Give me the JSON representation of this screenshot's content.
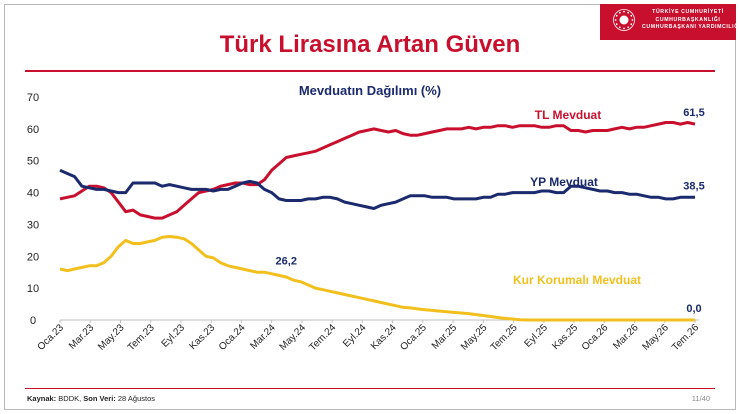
{
  "header": {
    "title": "Türk Lirasına Artan Güven",
    "banner_line1": "TÜRKİYE CUMHURİYETİ",
    "banner_line2": "CUMHURBAŞKANLIĞI",
    "banner_line3": "CUMHURBAŞKANI YARDIMCILIĞI",
    "brand_color": "#c8102e"
  },
  "footer": {
    "source_label": "Kaynak:",
    "source_text": " BDDK, ",
    "data_label": "Son Veri:",
    "data_text": " 28 Ağustos",
    "page": "11/40"
  },
  "chart_data": {
    "type": "line",
    "title": "Mevduatın Dağılımı (%)",
    "xlabel": "",
    "ylabel": "",
    "ylim": [
      0,
      70
    ],
    "yticks": [
      0,
      10,
      20,
      30,
      40,
      50,
      60,
      70
    ],
    "grid": false,
    "x_tick_labels": [
      "Oca.23",
      "Mar.23",
      "May.23",
      "Tem.23",
      "Eyl.23",
      "Kas.23",
      "Oca.24",
      "Mar.24",
      "May.24",
      "Tem.24",
      "Eyl.24",
      "Kas.24",
      "Oca.25",
      "Mar.25",
      "May.25",
      "Tem.25",
      "Eyl.25",
      "Kas.25",
      "Oca.26",
      "Mar.26",
      "May.26",
      "Tem.26"
    ],
    "series": [
      {
        "name": "TL Mevduat",
        "color": "#c8102e",
        "end_label": "61,5",
        "x": [
          0,
          0.5,
          1,
          1.5,
          2,
          2.5,
          3,
          3.5,
          4,
          4.5,
          5,
          5.5,
          6,
          6.5,
          7,
          7.5,
          8,
          8.5,
          9,
          9.5,
          10,
          10.5,
          11,
          11.5,
          12,
          12.5,
          13,
          13.5,
          14,
          14.5,
          15,
          15.5,
          16,
          16.5,
          17,
          17.5,
          18,
          18.5,
          19,
          19.5,
          20,
          20.5,
          21,
          21.5,
          22,
          22.5,
          23,
          23.5,
          24,
          24.5,
          25,
          25.5,
          26,
          26.5,
          27,
          27.5,
          28,
          28.5,
          29,
          29.5,
          30,
          30.5,
          31,
          31.5,
          32,
          32.5,
          33,
          33.5,
          34,
          34.5,
          35,
          35.5,
          36,
          36.5,
          37,
          37.5,
          38,
          38.5,
          39,
          39.5,
          40,
          40.5,
          41,
          41.5,
          42,
          42.5,
          43,
          43.5
        ],
        "values": [
          38,
          38.5,
          39,
          40.5,
          42,
          42,
          41.5,
          40,
          37,
          34,
          34.5,
          33,
          32.5,
          32,
          32,
          33,
          34,
          36,
          38,
          40,
          40.5,
          41,
          42,
          42.5,
          43,
          43,
          42.5,
          42.5,
          44,
          47,
          49,
          51,
          51.5,
          52,
          52.5,
          53,
          54,
          55,
          56,
          57,
          58,
          59,
          59.5,
          60,
          59.5,
          59,
          59.5,
          58.5,
          58,
          58,
          58.5,
          59,
          59.5,
          60,
          60,
          60,
          60.5,
          60,
          60.5,
          60.5,
          61,
          61,
          60.5,
          61,
          61,
          61,
          60.5,
          60.5,
          61,
          61,
          59.5,
          59.5,
          59,
          59.5,
          59.5,
          59.5,
          60,
          60.5,
          60,
          60.5,
          60.5,
          61,
          61.5,
          62,
          62,
          61.5,
          62,
          61.5
        ]
      },
      {
        "name": "YP Mevduat",
        "color": "#1a2a6c",
        "end_label": "38,5",
        "x": [
          0,
          0.5,
          1,
          1.5,
          2,
          2.5,
          3,
          3.5,
          4,
          4.5,
          5,
          5.5,
          6,
          6.5,
          7,
          7.5,
          8,
          8.5,
          9,
          9.5,
          10,
          10.5,
          11,
          11.5,
          12,
          12.5,
          13,
          13.5,
          14,
          14.5,
          15,
          15.5,
          16,
          16.5,
          17,
          17.5,
          18,
          18.5,
          19,
          19.5,
          20,
          20.5,
          21,
          21.5,
          22,
          22.5,
          23,
          23.5,
          24,
          24.5,
          25,
          25.5,
          26,
          26.5,
          27,
          27.5,
          28,
          28.5,
          29,
          29.5,
          30,
          30.5,
          31,
          31.5,
          32,
          32.5,
          33,
          33.5,
          34,
          34.5,
          35,
          35.5,
          36,
          36.5,
          37,
          37.5,
          38,
          38.5,
          39,
          39.5,
          40,
          40.5,
          41,
          41.5,
          42,
          42.5,
          43,
          43.5
        ],
        "values": [
          47,
          46,
          45,
          42,
          41.5,
          41,
          41,
          40.5,
          40,
          40,
          43,
          43,
          43,
          43,
          42,
          42.5,
          42,
          41.5,
          41,
          41,
          41,
          40.5,
          41,
          41,
          42,
          43,
          43.5,
          43,
          41,
          40,
          38,
          37.5,
          37.5,
          37.5,
          38,
          38,
          38.5,
          38.5,
          38,
          37,
          36.5,
          36,
          35.5,
          35,
          36,
          36.5,
          37,
          38,
          39,
          39,
          39,
          38.5,
          38.5,
          38.5,
          38,
          38,
          38,
          38,
          38.5,
          38.5,
          39.5,
          39.5,
          40,
          40,
          40,
          40,
          40.5,
          40.5,
          40,
          40,
          42,
          42,
          41.5,
          41,
          40.5,
          40.5,
          40,
          40,
          39.5,
          39.5,
          39,
          38.5,
          38.5,
          38,
          38,
          38.5,
          38.5,
          38.5
        ]
      },
      {
        "name": "Kur Korumalı Mevduat",
        "color": "#f2c01e",
        "end_label": "0,0",
        "x": [
          0,
          0.5,
          1,
          1.5,
          2,
          2.5,
          3,
          3.5,
          4,
          4.5,
          5,
          5.5,
          6,
          6.5,
          7,
          7.5,
          8,
          8.5,
          9,
          9.5,
          10,
          10.5,
          11,
          11.5,
          12,
          12.5,
          13,
          13.5,
          14,
          14.5,
          15,
          15.5,
          16,
          16.5,
          17,
          17.5,
          18,
          18.5,
          19,
          19.5,
          20,
          20.5,
          21,
          21.5,
          22,
          22.5,
          23,
          23.5,
          24,
          24.5,
          25,
          25.5,
          26,
          26.5,
          27,
          27.5,
          28,
          28.5,
          29,
          29.5,
          30,
          30.5,
          31,
          31.5,
          32,
          32.5,
          33,
          33.5,
          34,
          34.5,
          35,
          35.5,
          36,
          36.5,
          37,
          37.5,
          38,
          38.5,
          39,
          39.5,
          40,
          40.5,
          41,
          41.5,
          42,
          42.5,
          43,
          43.5
        ],
        "values": [
          16,
          15.5,
          16,
          16.5,
          17,
          17,
          18,
          20,
          23,
          25,
          24,
          24,
          24.5,
          25,
          26,
          26.2,
          26,
          25.5,
          24,
          22,
          20,
          19.5,
          18,
          17,
          16.5,
          16,
          15.5,
          15,
          15,
          14.5,
          14,
          13.5,
          12.5,
          12,
          11,
          10,
          9.5,
          9,
          8.5,
          8,
          7.5,
          7,
          6.5,
          6,
          5.5,
          5,
          4.5,
          4,
          3.8,
          3.5,
          3.2,
          3,
          2.8,
          2.6,
          2.4,
          2.2,
          2,
          1.7,
          1.4,
          1.1,
          0.8,
          0.5,
          0.3,
          0.1,
          0,
          0,
          0,
          0,
          0,
          0,
          0,
          0,
          0,
          0,
          0,
          0,
          0,
          0,
          0,
          0,
          0,
          0,
          0,
          0,
          0,
          0,
          0,
          0
        ]
      }
    ],
    "annotations": [
      {
        "text": "26,2",
        "x": 15.5,
        "y": 26.2
      }
    ]
  }
}
